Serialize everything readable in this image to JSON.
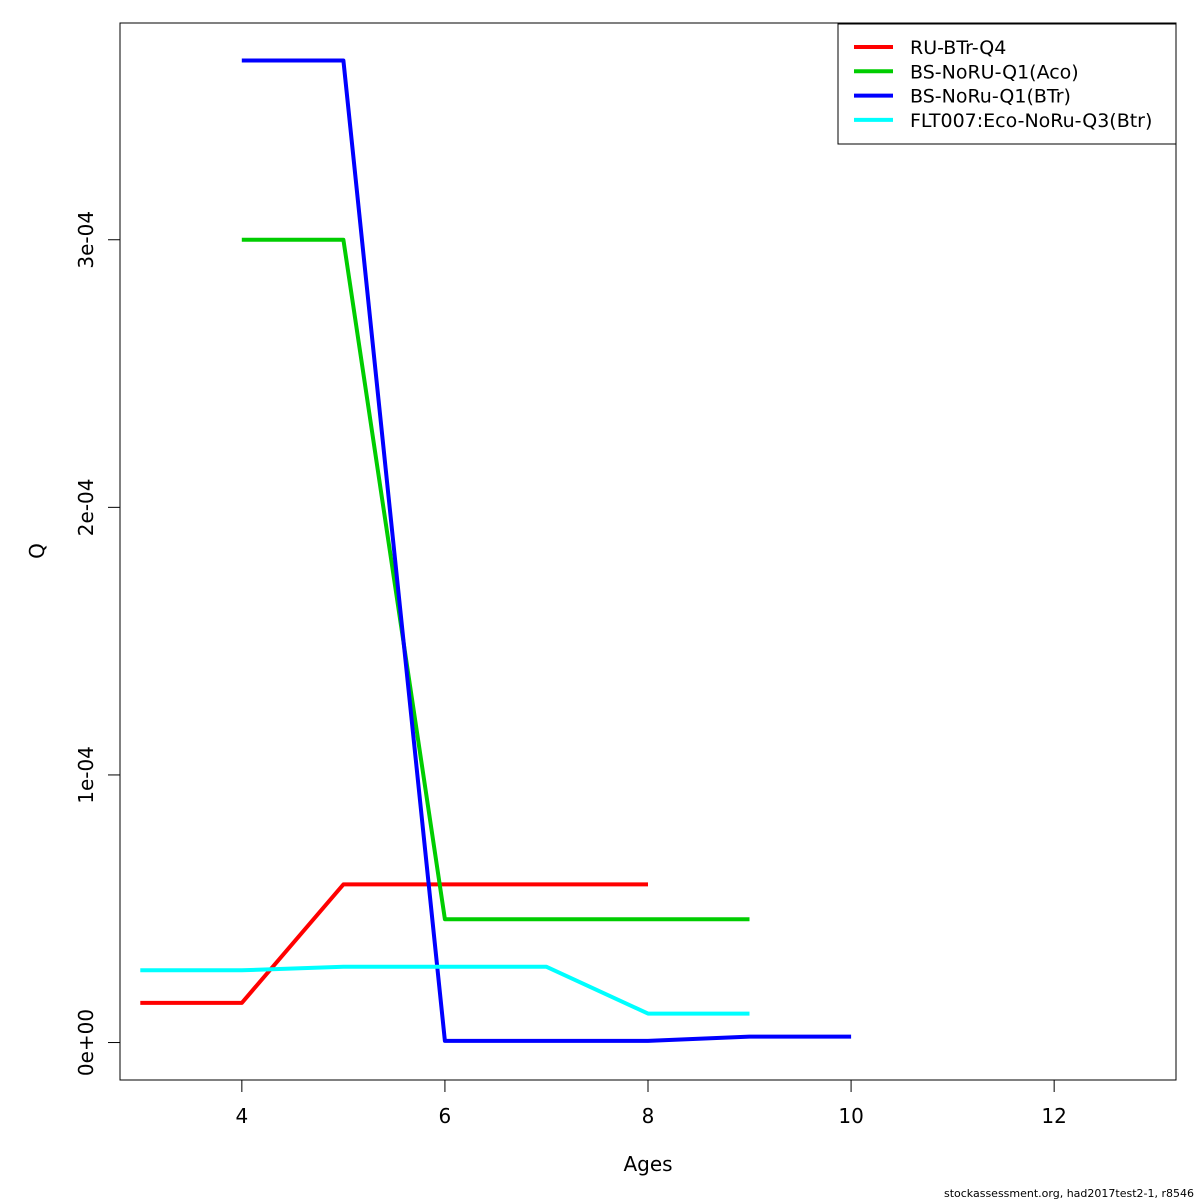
{
  "chart_data": {
    "type": "line",
    "title": "",
    "xlabel": "Ages",
    "ylabel": "Q",
    "xlim": [
      2.8,
      13.2
    ],
    "ylim": [
      -1.4e-05,
      0.000381
    ],
    "x_ticks": [
      {
        "value": 4,
        "label": "4"
      },
      {
        "value": 6,
        "label": "6"
      },
      {
        "value": 8,
        "label": "8"
      },
      {
        "value": 10,
        "label": "10"
      },
      {
        "value": 12,
        "label": "12"
      }
    ],
    "y_ticks": [
      {
        "value": 0,
        "label": "0e+00"
      },
      {
        "value": 0.0001,
        "label": "1e-04"
      },
      {
        "value": 0.0002,
        "label": "2e-04"
      },
      {
        "value": 0.0003,
        "label": "3e-04"
      }
    ],
    "grid": false,
    "legend_position": "top-right",
    "series": [
      {
        "name": "RU-BTr-Q4",
        "color": "#ff0000",
        "x": [
          3,
          4,
          5,
          6,
          7,
          8
        ],
        "values": [
          1.48e-05,
          1.48e-05,
          5.91e-05,
          5.91e-05,
          5.91e-05,
          5.91e-05
        ]
      },
      {
        "name": "BS-NoRU-Q1(Aco)",
        "color": "#00cd00",
        "x": [
          4,
          5,
          6,
          7,
          8,
          9
        ],
        "values": [
          0.0003,
          0.0003,
          4.61e-05,
          4.61e-05,
          4.61e-05,
          4.61e-05
        ]
      },
      {
        "name": "BS-NoRu-Q1(BTr)",
        "color": "#0000ff",
        "x": [
          4,
          5,
          6,
          7,
          8,
          9,
          10
        ],
        "values": [
          0.000367,
          0.000367,
          6e-07,
          6e-07,
          6e-07,
          2.2e-06,
          2.2e-06
        ]
      },
      {
        "name": "FLT007:Eco-NoRu-Q3(Btr)",
        "color": "#00ffff",
        "x": [
          3,
          4,
          5,
          6,
          7,
          8,
          9
        ],
        "values": [
          2.7e-05,
          2.7e-05,
          2.83e-05,
          2.83e-05,
          2.83e-05,
          1.08e-05,
          1.08e-05
        ]
      }
    ]
  },
  "footer_text": "stockassessment.org, had2017test2-1, r8546"
}
